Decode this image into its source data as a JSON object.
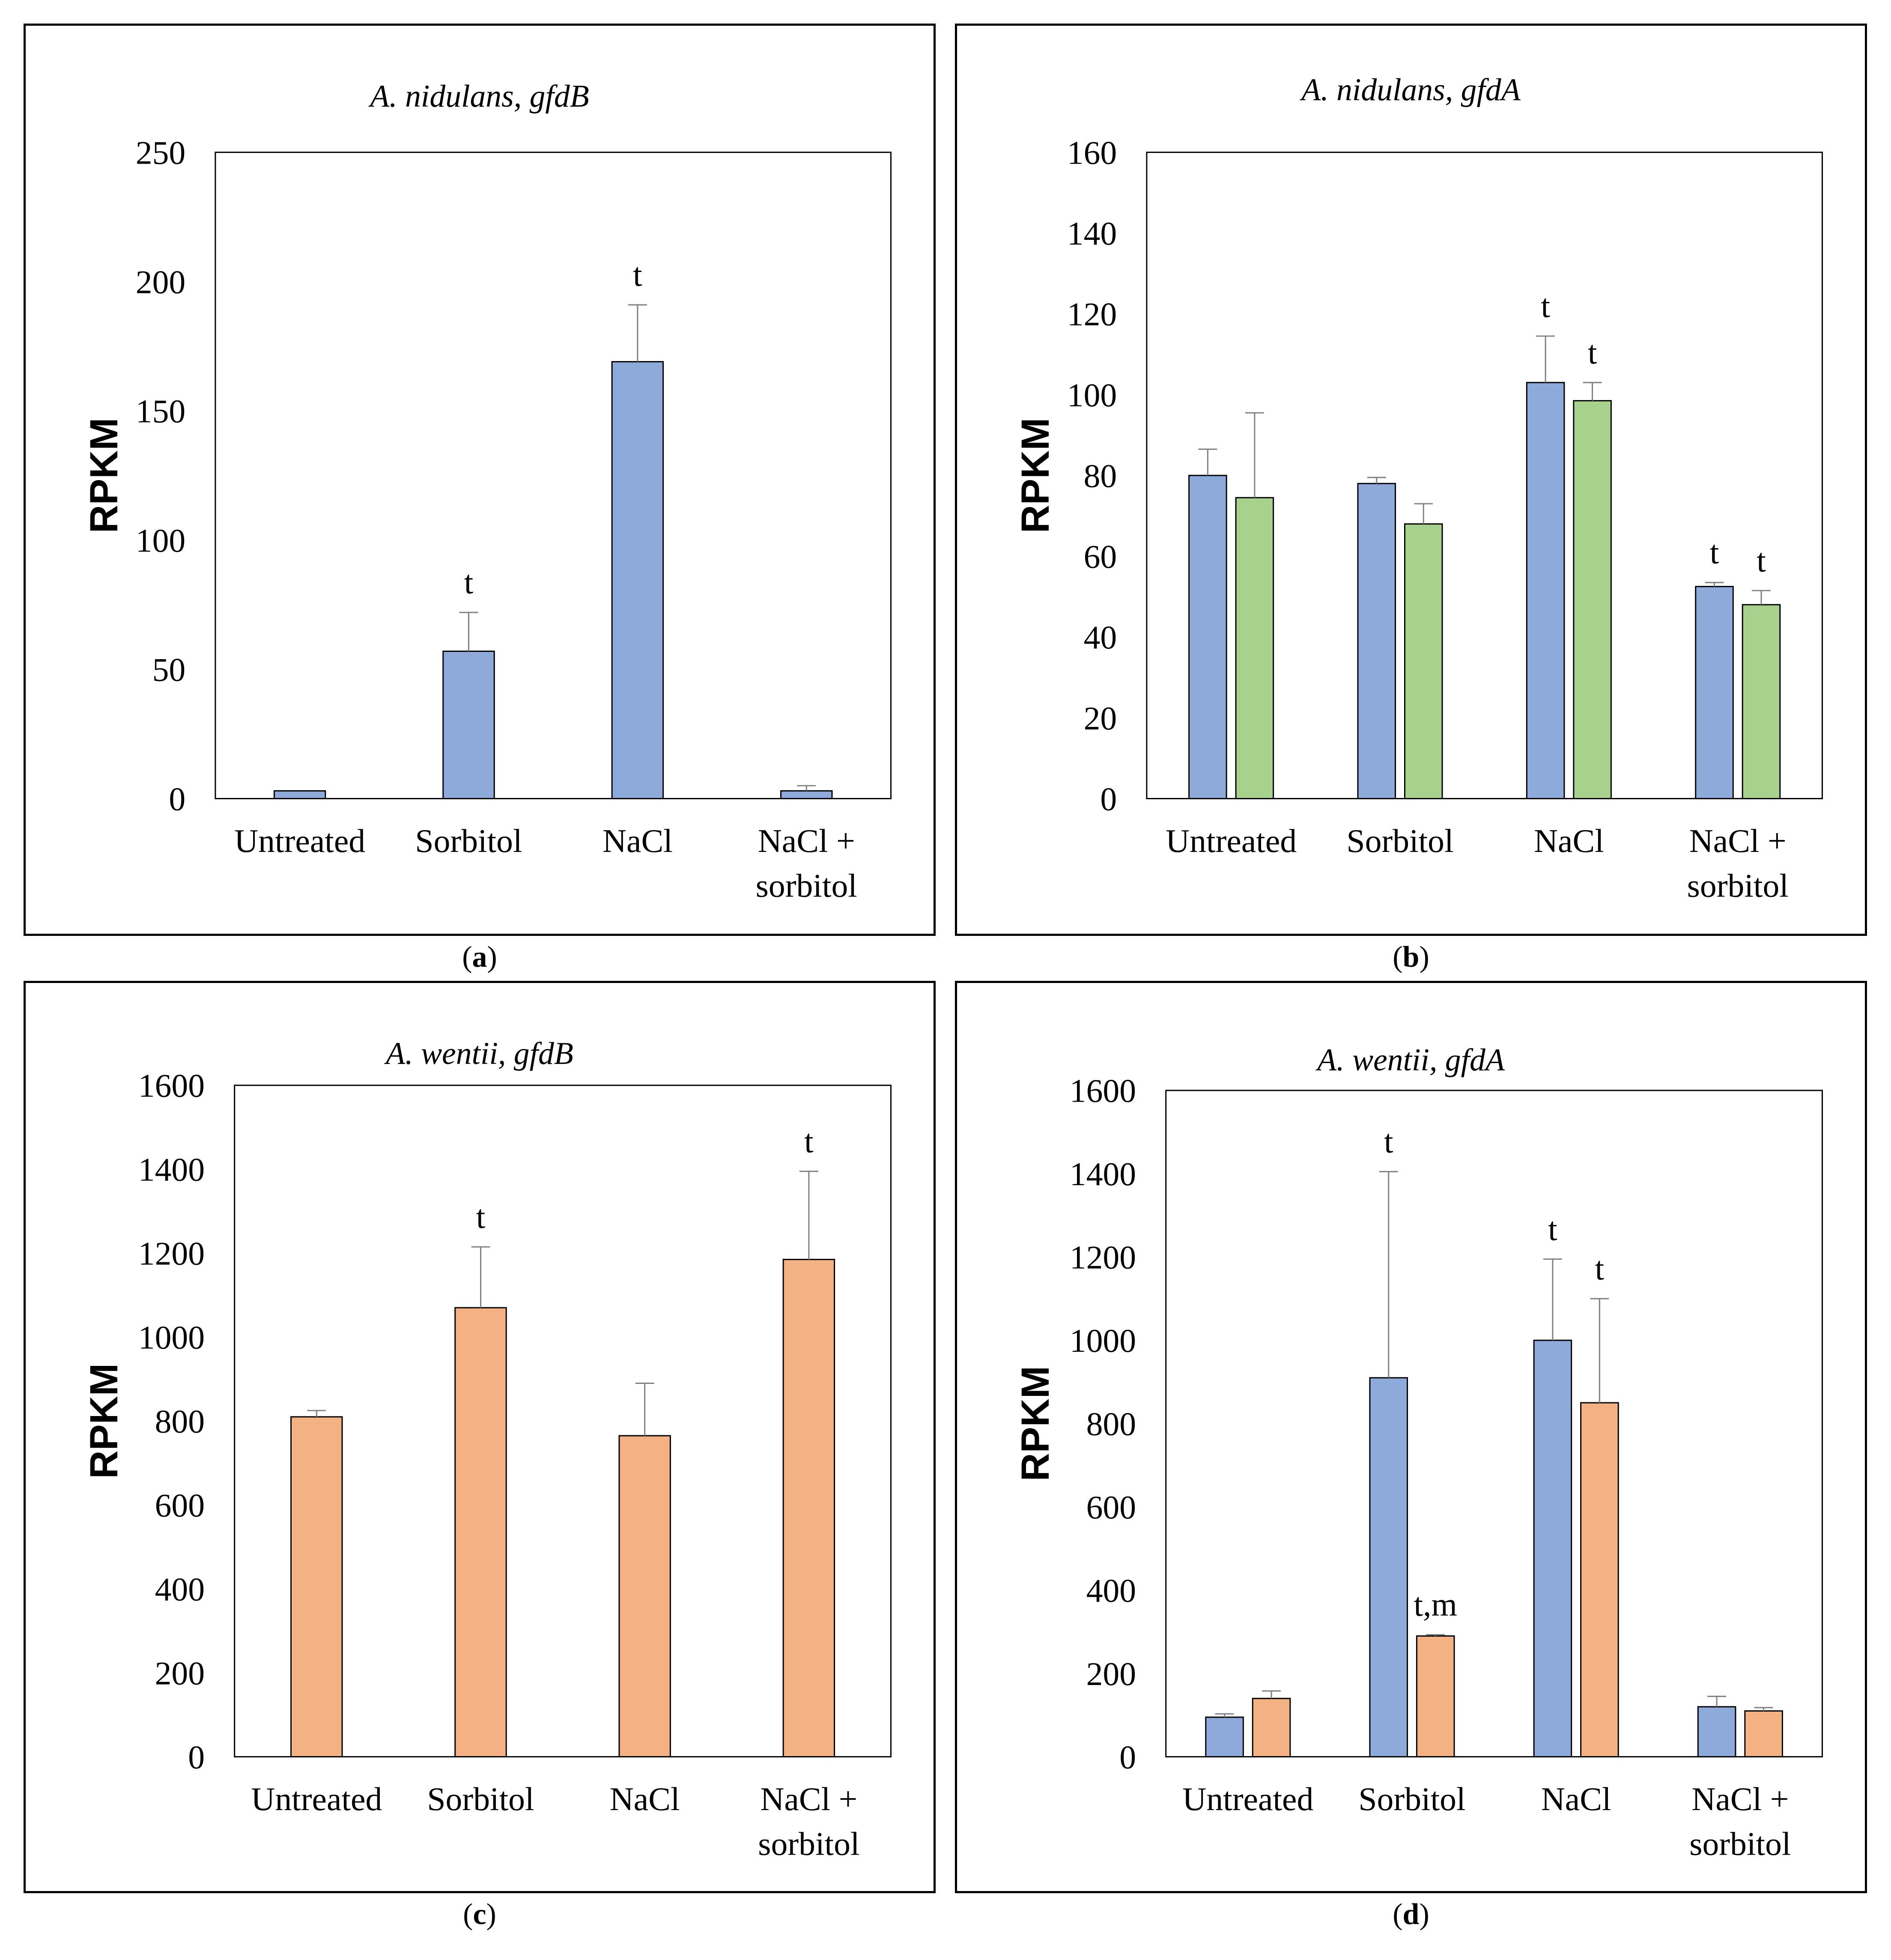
{
  "colors": {
    "blue": "#8eaadb",
    "green": "#a9d18e",
    "orange": "#f4b183",
    "edge": "#000000",
    "errbar": "#7f7f7f"
  },
  "chart_data": [
    {
      "panel_label": "a",
      "type": "bar",
      "title": "A. nidulans, gfdB",
      "ylabel": "RPKM",
      "xlabel": "",
      "ylim": [
        0,
        250
      ],
      "yticks": [
        "0",
        "50",
        "100",
        "150",
        "200",
        "250"
      ],
      "categories": [
        [
          "Untreated"
        ],
        [
          "Sorbitol"
        ],
        [
          "NaCl"
        ],
        [
          "NaCl +",
          "sorbitol"
        ]
      ],
      "series": [
        {
          "name": "gfdB",
          "color": "#8eaadb",
          "values": [
            3,
            57,
            169,
            3
          ],
          "errors": [
            0,
            15,
            22,
            2
          ],
          "annotations": [
            "",
            "t",
            "t",
            ""
          ]
        }
      ]
    },
    {
      "panel_label": "b",
      "type": "bar",
      "title": "A. nidulans, gfdA",
      "ylabel": "RPKM",
      "xlabel": "",
      "ylim": [
        0,
        160
      ],
      "yticks": [
        "0",
        "20",
        "40",
        "60",
        "80",
        "100",
        "120",
        "140",
        "160"
      ],
      "categories": [
        [
          "Untreated"
        ],
        [
          "Sorbitol"
        ],
        [
          "NaCl"
        ],
        [
          "NaCl +",
          "sorbitol"
        ]
      ],
      "series": [
        {
          "name": "series 1",
          "color": "#8eaadb",
          "values": [
            80,
            78,
            103,
            52.5
          ],
          "errors": [
            6.5,
            1.5,
            11.5,
            1
          ],
          "annotations": [
            "",
            "",
            "t",
            "t"
          ]
        },
        {
          "name": "series 2",
          "color": "#a9d18e",
          "values": [
            74.5,
            68,
            98.5,
            48
          ],
          "errors": [
            21,
            5,
            4.5,
            3.5
          ],
          "annotations": [
            "",
            "",
            "t",
            "t"
          ]
        }
      ]
    },
    {
      "panel_label": "c",
      "type": "bar",
      "title": "A. wentii, gfdB",
      "ylabel": "RPKM",
      "xlabel": "",
      "ylim": [
        0,
        1600
      ],
      "yticks": [
        "0",
        "200",
        "400",
        "600",
        "800",
        "1000",
        "1200",
        "1400",
        "1600"
      ],
      "categories": [
        [
          "Untreated"
        ],
        [
          "Sorbitol"
        ],
        [
          "NaCl"
        ],
        [
          "NaCl +",
          "sorbitol"
        ]
      ],
      "series": [
        {
          "name": "gfdB",
          "color": "#f4b183",
          "values": [
            810,
            1070,
            765,
            1185
          ],
          "errors": [
            15,
            145,
            125,
            210
          ],
          "annotations": [
            "",
            "t",
            "",
            "t"
          ]
        }
      ]
    },
    {
      "panel_label": "d",
      "type": "bar",
      "title": "A. wentii, gfdA",
      "ylabel": "RPKM",
      "xlabel": "",
      "ylim": [
        0,
        1600
      ],
      "yticks": [
        "0",
        "200",
        "400",
        "600",
        "800",
        "1000",
        "1200",
        "1400",
        "1600"
      ],
      "categories": [
        [
          "Untreated"
        ],
        [
          "Sorbitol"
        ],
        [
          "NaCl"
        ],
        [
          "NaCl +",
          "sorbitol"
        ]
      ],
      "series": [
        {
          "name": "series 1",
          "color": "#8eaadb",
          "values": [
            95,
            910,
            1000,
            120
          ],
          "errors": [
            8,
            495,
            195,
            25
          ],
          "annotations": [
            "",
            "t",
            "t",
            ""
          ]
        },
        {
          "name": "series 2",
          "color": "#f4b183",
          "values": [
            140,
            290,
            850,
            110
          ],
          "errors": [
            18,
            3,
            250,
            8
          ],
          "annotations": [
            "",
            "t,m",
            "t",
            ""
          ]
        }
      ]
    }
  ]
}
